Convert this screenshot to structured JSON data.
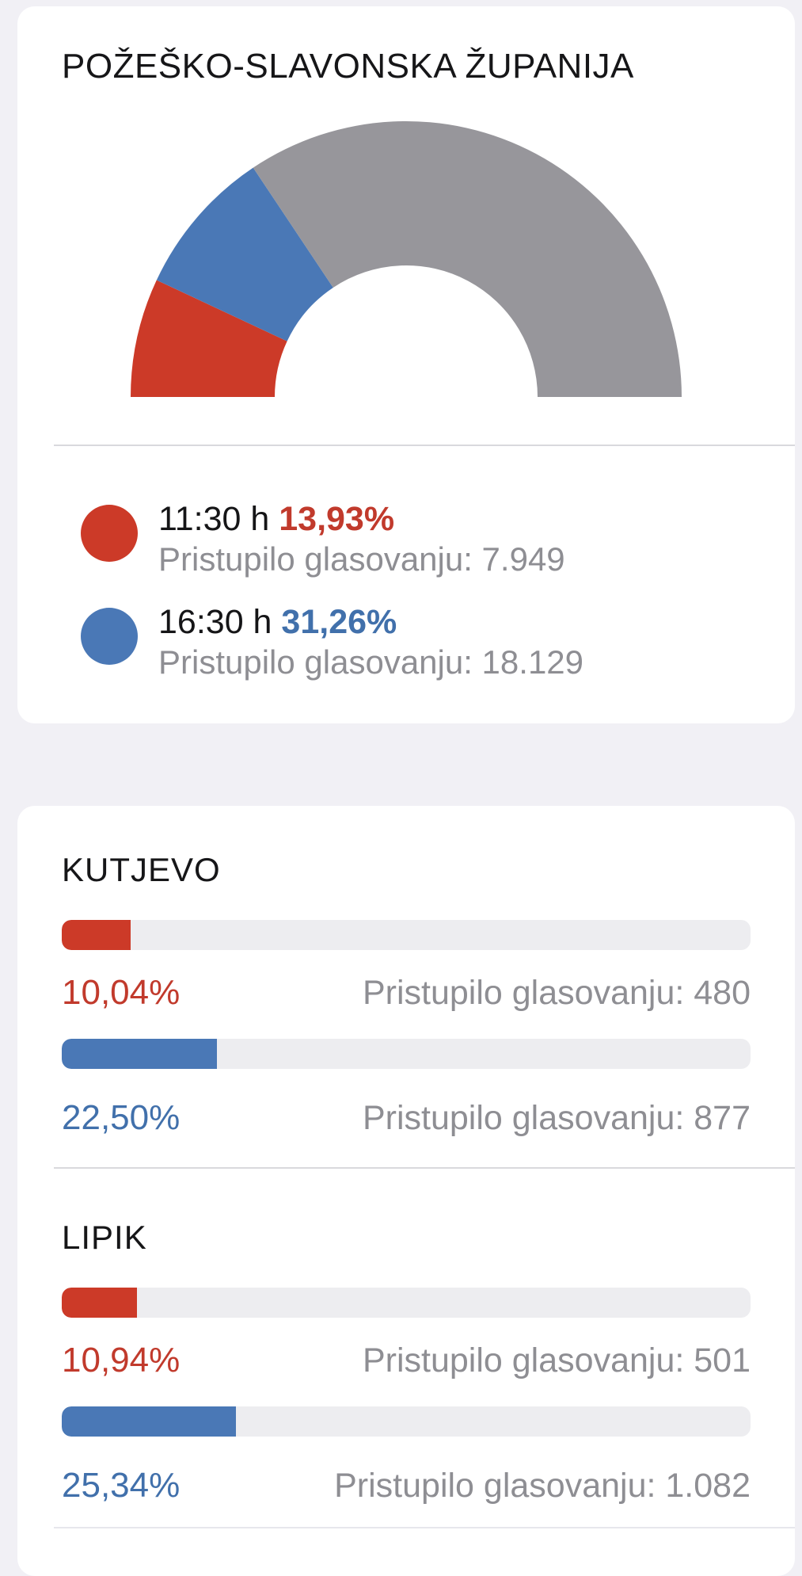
{
  "colors": {
    "page_bg": "#f1f0f5",
    "card_bg": "#ffffff",
    "title_text": "#161618",
    "gray_text": "#8e8e93",
    "red": "#cc3a28",
    "red_text": "#c13a2c",
    "blue": "#4a78b6",
    "blue_text": "#4170ab",
    "gray_arc": "#97969b",
    "track": "#ededf0",
    "divider": "#d9d9dd",
    "divider_faint": "#e7e7ec"
  },
  "county_card": {
    "title": "POŽEŠKO-SLAVONSKA ŽUPANIJA",
    "legend": [
      {
        "time": "11:30 h",
        "percent": "13,93%",
        "detail": "Pristupilo glasovanju: 7.949"
      },
      {
        "time": "16:30 h",
        "percent": "31,26%",
        "detail": "Pristupilo glasovanju: 18.129"
      }
    ]
  },
  "chart_data": {
    "type": "gauge",
    "title": "POŽEŠKO-SLAVONSKA ŽUPANIJA",
    "subtitle": "Half-donut cumulative voter turnout gauge (180°)",
    "max": 100,
    "series": [
      {
        "name": "11:30 h",
        "cumulative_percent": 13.93,
        "voters": 7949,
        "color_key": "red"
      },
      {
        "name": "16:30 h",
        "cumulative_percent": 31.26,
        "voters": 18129,
        "color_key": "blue"
      }
    ],
    "remainder_color_key": "gray_arc",
    "legend_position": "below"
  },
  "cities": {
    "sections": [
      {
        "name": "KUTJEVO",
        "rows": [
          {
            "percent_label": "10,04%",
            "percent_value": 10.04,
            "detail": "Pristupilo glasovanju: 480",
            "color_key": "red"
          },
          {
            "percent_label": "22,50%",
            "percent_value": 22.5,
            "detail": "Pristupilo glasovanju: 877",
            "color_key": "blue"
          }
        ]
      },
      {
        "name": "LIPIK",
        "rows": [
          {
            "percent_label": "10,94%",
            "percent_value": 10.94,
            "detail": "Pristupilo glasovanju: 501",
            "color_key": "red"
          },
          {
            "percent_label": "25,34%",
            "percent_value": 25.34,
            "detail": "Pristupilo glasovanju: 1.082",
            "color_key": "blue"
          }
        ]
      }
    ]
  }
}
